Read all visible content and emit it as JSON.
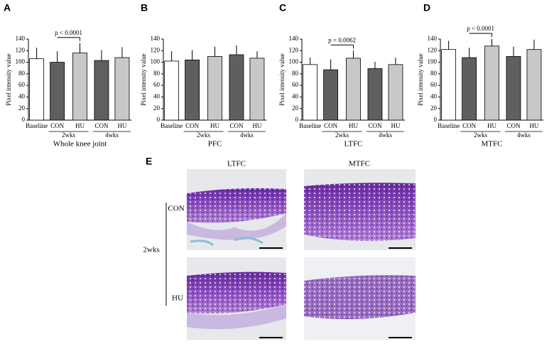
{
  "chart_data": [
    {
      "type": "bar",
      "panel": "A",
      "ylabel": "Pixel intensity value",
      "xlabel": "Whole knee joint",
      "categories": [
        "Baseline",
        "CON",
        "HU",
        "CON",
        "HU"
      ],
      "groups": [
        "2wks",
        "4wks"
      ],
      "values": [
        106,
        100,
        116,
        103,
        108
      ],
      "errors": [
        19,
        19,
        17,
        18,
        18
      ],
      "colors": [
        "#ffffff",
        "#5f5f5f",
        "#c8c8c8",
        "#5f5f5f",
        "#c8c8c8"
      ],
      "ylim": [
        0,
        140
      ],
      "yticks": [
        0,
        20,
        40,
        60,
        80,
        100,
        120,
        140
      ],
      "annotation": "p < 0.0001"
    },
    {
      "type": "bar",
      "panel": "B",
      "ylabel": "Pixel intensity value",
      "xlabel": "PFC",
      "categories": [
        "Baseline",
        "CON",
        "HU",
        "CON",
        "HU"
      ],
      "groups": [
        "2wks",
        "4wks"
      ],
      "values": [
        102,
        104,
        110,
        113,
        107
      ],
      "errors": [
        17,
        17,
        17,
        16,
        12
      ],
      "colors": [
        "#ffffff",
        "#5f5f5f",
        "#c8c8c8",
        "#5f5f5f",
        "#c8c8c8"
      ],
      "ylim": [
        0,
        140
      ],
      "yticks": [
        0,
        20,
        40,
        60,
        80,
        100,
        120,
        140
      ]
    },
    {
      "type": "bar",
      "panel": "C",
      "ylabel": "Pixel intensity value",
      "xlabel": "LTFC",
      "categories": [
        "Baseline",
        "CON",
        "HU",
        "CON",
        "HU"
      ],
      "groups": [
        "2wks",
        "4wks"
      ],
      "values": [
        96,
        87,
        107,
        89,
        96
      ],
      "errors": [
        12,
        18,
        13,
        12,
        12
      ],
      "colors": [
        "#ffffff",
        "#5f5f5f",
        "#c8c8c8",
        "#5f5f5f",
        "#c8c8c8"
      ],
      "ylim": [
        0,
        140
      ],
      "yticks": [
        0,
        20,
        40,
        60,
        80,
        100,
        120,
        140
      ],
      "annotation": "p = 0.0062"
    },
    {
      "type": "bar",
      "panel": "D",
      "ylabel": "Pixel intensity value",
      "xlabel": "MTFC",
      "categories": [
        "Baseline",
        "CON",
        "HU",
        "CON",
        "HU"
      ],
      "groups": [
        "2wks",
        "4wks"
      ],
      "values": [
        122,
        108,
        128,
        110,
        122
      ],
      "errors": [
        15,
        17,
        12,
        17,
        17
      ],
      "colors": [
        "#ffffff",
        "#5f5f5f",
        "#c8c8c8",
        "#5f5f5f",
        "#c8c8c8"
      ],
      "ylim": [
        0,
        140
      ],
      "yticks": [
        0,
        20,
        40,
        60,
        80,
        100,
        120,
        140
      ],
      "annotation": "p < 0.0001"
    }
  ],
  "histology": {
    "label": "E",
    "columns": [
      "LTFC",
      "MTFC"
    ],
    "rows": [
      "CON",
      "HU"
    ],
    "group": "2wks"
  }
}
